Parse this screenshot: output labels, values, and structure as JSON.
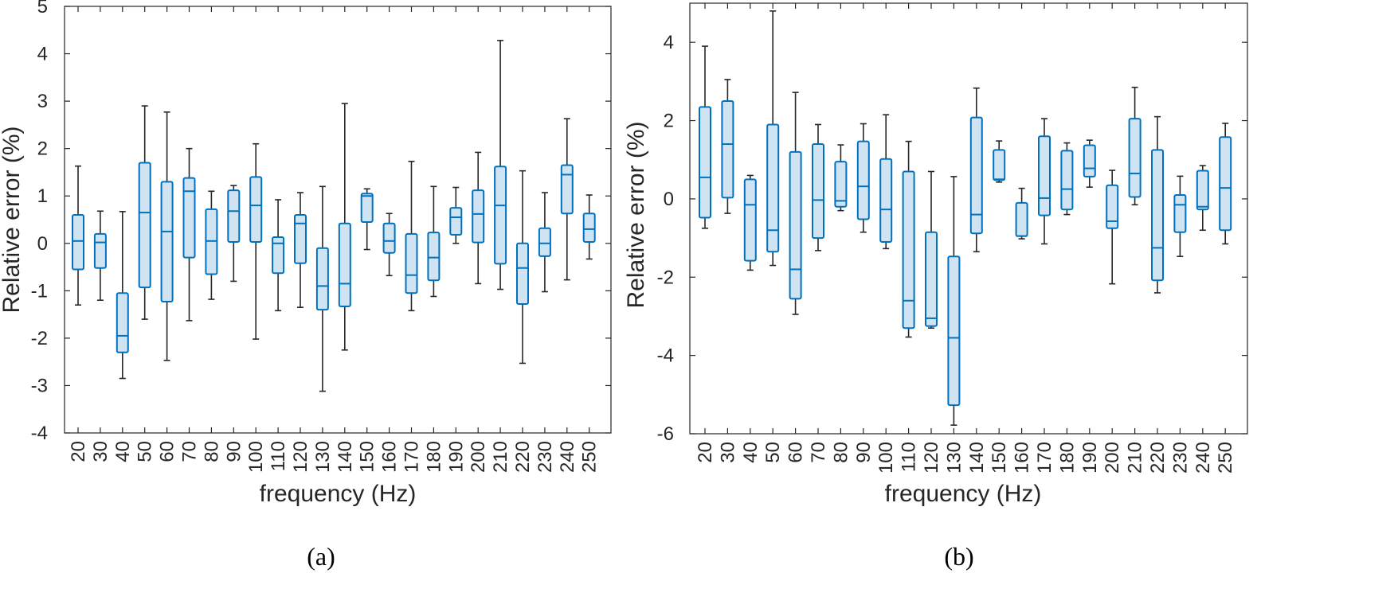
{
  "chart_data": [
    {
      "type": "box",
      "panel_label": "(a)",
      "xlabel": "frequency (Hz)",
      "ylabel": "Relative error (%)",
      "ylim": [
        -4,
        5
      ],
      "yticks": [
        -4,
        -3,
        -2,
        -1,
        0,
        1,
        2,
        3,
        4,
        5
      ],
      "categories": [
        "20",
        "30",
        "40",
        "50",
        "60",
        "70",
        "80",
        "90",
        "100",
        "110",
        "120",
        "130",
        "140",
        "150",
        "160",
        "170",
        "180",
        "190",
        "200",
        "210",
        "220",
        "230",
        "240",
        "250"
      ],
      "boxes": [
        {
          "min": -1.3,
          "q1": -0.55,
          "median": 0.05,
          "q3": 0.6,
          "max": 1.63
        },
        {
          "min": -1.2,
          "q1": -0.52,
          "median": 0.02,
          "q3": 0.2,
          "max": 0.68
        },
        {
          "min": -2.85,
          "q1": -2.3,
          "median": -1.95,
          "q3": -1.05,
          "max": 0.67
        },
        {
          "min": -1.6,
          "q1": -0.93,
          "median": 0.65,
          "q3": 1.7,
          "max": 2.9
        },
        {
          "min": -2.47,
          "q1": -1.23,
          "median": 0.25,
          "q3": 1.3,
          "max": 2.77
        },
        {
          "min": -1.63,
          "q1": -0.3,
          "median": 1.1,
          "q3": 1.38,
          "max": 2.0
        },
        {
          "min": -1.18,
          "q1": -0.65,
          "median": 0.05,
          "q3": 0.72,
          "max": 1.1
        },
        {
          "min": -0.8,
          "q1": 0.03,
          "median": 0.68,
          "q3": 1.12,
          "max": 1.22
        },
        {
          "min": -2.02,
          "q1": 0.03,
          "median": 0.8,
          "q3": 1.4,
          "max": 2.1
        },
        {
          "min": -1.42,
          "q1": -0.63,
          "median": 0.0,
          "q3": 0.13,
          "max": 0.92
        },
        {
          "min": -1.35,
          "q1": -0.42,
          "median": 0.42,
          "q3": 0.6,
          "max": 1.07
        },
        {
          "min": -3.12,
          "q1": -1.4,
          "median": -0.9,
          "q3": -0.1,
          "max": 1.2
        },
        {
          "min": -2.25,
          "q1": -1.33,
          "median": -0.85,
          "q3": 0.42,
          "max": 2.95
        },
        {
          "min": -0.13,
          "q1": 0.45,
          "median": 1.0,
          "q3": 1.05,
          "max": 1.15
        },
        {
          "min": -0.68,
          "q1": -0.2,
          "median": 0.05,
          "q3": 0.42,
          "max": 0.63
        },
        {
          "min": -1.42,
          "q1": -1.05,
          "median": -0.67,
          "q3": 0.2,
          "max": 1.73
        },
        {
          "min": -1.12,
          "q1": -0.78,
          "median": -0.3,
          "q3": 0.23,
          "max": 1.2
        },
        {
          "min": 0.0,
          "q1": 0.18,
          "median": 0.55,
          "q3": 0.75,
          "max": 1.18
        },
        {
          "min": -0.85,
          "q1": 0.02,
          "median": 0.62,
          "q3": 1.12,
          "max": 1.92
        },
        {
          "min": -0.97,
          "q1": -0.43,
          "median": 0.8,
          "q3": 1.62,
          "max": 4.28
        },
        {
          "min": -2.53,
          "q1": -1.28,
          "median": -0.52,
          "q3": 0.0,
          "max": 1.53
        },
        {
          "min": -1.02,
          "q1": -0.27,
          "median": 0.0,
          "q3": 0.32,
          "max": 1.07
        },
        {
          "min": -0.77,
          "q1": 0.63,
          "median": 1.45,
          "q3": 1.65,
          "max": 2.63
        },
        {
          "min": -0.33,
          "q1": 0.03,
          "median": 0.3,
          "q3": 0.63,
          "max": 1.02
        }
      ]
    },
    {
      "type": "box",
      "panel_label": "(b)",
      "xlabel": "frequency (Hz)",
      "ylabel": "Relative error (%)",
      "ylim": [
        -6,
        5
      ],
      "yticks": [
        -6,
        -4,
        -2,
        0,
        2,
        4
      ],
      "categories": [
        "20",
        "30",
        "40",
        "50",
        "60",
        "70",
        "80",
        "90",
        "100",
        "110",
        "120",
        "130",
        "140",
        "150",
        "160",
        "170",
        "180",
        "190",
        "200",
        "210",
        "220",
        "230",
        "240",
        "250"
      ],
      "boxes": [
        {
          "min": -0.75,
          "q1": -0.48,
          "median": 0.55,
          "q3": 2.35,
          "max": 3.9
        },
        {
          "min": -0.37,
          "q1": 0.03,
          "median": 1.4,
          "q3": 2.5,
          "max": 3.05
        },
        {
          "min": -1.82,
          "q1": -1.58,
          "median": -0.15,
          "q3": 0.5,
          "max": 0.6
        },
        {
          "min": -1.7,
          "q1": -1.35,
          "median": -0.8,
          "q3": 1.9,
          "max": 4.8
        },
        {
          "min": -2.95,
          "q1": -2.55,
          "median": -1.8,
          "q3": 1.2,
          "max": 2.72
        },
        {
          "min": -1.32,
          "q1": -1.0,
          "median": -0.03,
          "q3": 1.4,
          "max": 1.9
        },
        {
          "min": -0.3,
          "q1": -0.2,
          "median": -0.05,
          "q3": 0.95,
          "max": 1.38
        },
        {
          "min": -0.85,
          "q1": -0.52,
          "median": 0.32,
          "q3": 1.47,
          "max": 1.92
        },
        {
          "min": -1.27,
          "q1": -1.1,
          "median": -0.27,
          "q3": 1.02,
          "max": 2.15
        },
        {
          "min": -3.53,
          "q1": -3.3,
          "median": -2.6,
          "q3": 0.7,
          "max": 1.47
        },
        {
          "min": -3.3,
          "q1": -3.25,
          "median": -3.05,
          "q3": -0.85,
          "max": 0.7
        },
        {
          "min": -5.78,
          "q1": -5.27,
          "median": -3.55,
          "q3": -1.47,
          "max": 0.57
        },
        {
          "min": -1.35,
          "q1": -0.88,
          "median": -0.4,
          "q3": 2.08,
          "max": 2.83
        },
        {
          "min": 0.43,
          "q1": 0.48,
          "median": 0.5,
          "q3": 1.25,
          "max": 1.48
        },
        {
          "min": -1.02,
          "q1": -0.95,
          "median": -0.95,
          "q3": -0.1,
          "max": 0.27
        },
        {
          "min": -1.15,
          "q1": -0.42,
          "median": 0.02,
          "q3": 1.6,
          "max": 2.05
        },
        {
          "min": -0.4,
          "q1": -0.27,
          "median": 0.25,
          "q3": 1.23,
          "max": 1.43
        },
        {
          "min": 0.3,
          "q1": 0.57,
          "median": 0.78,
          "q3": 1.37,
          "max": 1.5
        },
        {
          "min": -2.17,
          "q1": -0.75,
          "median": -0.57,
          "q3": 0.35,
          "max": 0.73
        },
        {
          "min": -0.15,
          "q1": 0.05,
          "median": 0.65,
          "q3": 2.05,
          "max": 2.85
        },
        {
          "min": -2.4,
          "q1": -2.08,
          "median": -1.25,
          "q3": 1.25,
          "max": 2.1
        },
        {
          "min": -1.47,
          "q1": -0.85,
          "median": -0.15,
          "q3": 0.1,
          "max": 0.58
        },
        {
          "min": -0.8,
          "q1": -0.27,
          "median": -0.2,
          "q3": 0.72,
          "max": 0.85
        },
        {
          "min": -1.15,
          "q1": -0.8,
          "median": 0.28,
          "q3": 1.58,
          "max": 1.93
        }
      ]
    }
  ],
  "colors": {
    "box_edge": "#0072BD",
    "box_fill": "#CFE3F2",
    "whisker": "#262626",
    "axis": "#262626"
  }
}
